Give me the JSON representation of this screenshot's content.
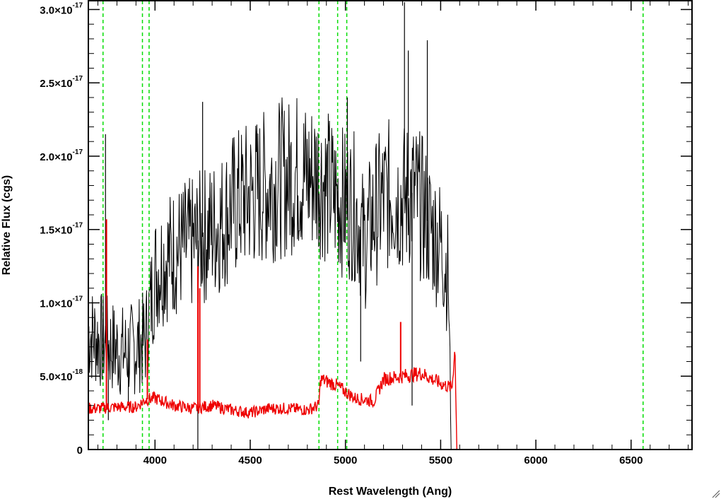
{
  "chart_data": {
    "type": "line",
    "xlabel": "Rest Wavelength (Ang)",
    "ylabel": "Relative Flux (cgs)",
    "xlim": [
      3650,
      6820
    ],
    "ylim": [
      0,
      3.06e-17
    ],
    "x_ticks": [
      {
        "value": 4000,
        "label": "4000"
      },
      {
        "value": 4500,
        "label": "4500"
      },
      {
        "value": 5000,
        "label": "5000"
      },
      {
        "value": 5500,
        "label": "5500"
      },
      {
        "value": 6000,
        "label": "6000"
      },
      {
        "value": 6500,
        "label": "6500"
      }
    ],
    "y_ticks": [
      {
        "value": 0,
        "mantissa": "0",
        "exponent": ""
      },
      {
        "value": 5e-18,
        "mantissa": "5.0×10",
        "exponent": "-18"
      },
      {
        "value": 1e-17,
        "mantissa": "1.0×10",
        "exponent": "-17"
      },
      {
        "value": 1.5e-17,
        "mantissa": "1.5×10",
        "exponent": "-17"
      },
      {
        "value": 2e-17,
        "mantissa": "2.0×10",
        "exponent": "-17"
      },
      {
        "value": 2.5e-17,
        "mantissa": "2.5×10",
        "exponent": "-17"
      },
      {
        "value": 3e-17,
        "mantissa": "3.0×10",
        "exponent": "-17"
      }
    ],
    "vertical_lines": {
      "color": "#00dd00",
      "style": "dashed",
      "x": [
        3727,
        3934,
        3969,
        4861,
        4959,
        5007,
        6563
      ]
    },
    "series": [
      {
        "color": "#000000",
        "points": [
          [
            3650,
            8e-18
          ],
          [
            3700,
            7.5e-18
          ],
          [
            3750,
            7.2e-18
          ],
          [
            3800,
            6.8e-18
          ],
          [
            3850,
            6.6e-18
          ],
          [
            3900,
            7e-18
          ],
          [
            3950,
            7.5e-18
          ],
          [
            4000,
            1.2e-17
          ],
          [
            4050,
            1.3e-17
          ],
          [
            4100,
            1.35e-17
          ],
          [
            4150,
            1.38e-17
          ],
          [
            4200,
            1.4e-17
          ],
          [
            4250,
            1.45e-17
          ],
          [
            4300,
            1.5e-17
          ],
          [
            4350,
            1.55e-17
          ],
          [
            4400,
            1.65e-17
          ],
          [
            4450,
            1.7e-17
          ],
          [
            4500,
            1.73e-17
          ],
          [
            4550,
            1.77e-17
          ],
          [
            4600,
            1.8e-17
          ],
          [
            4650,
            1.85e-17
          ],
          [
            4700,
            1.85e-17
          ],
          [
            4750,
            1.9e-17
          ],
          [
            4800,
            1.85e-17
          ],
          [
            4850,
            1.88e-17
          ],
          [
            4900,
            1.8e-17
          ],
          [
            4950,
            1.72e-17
          ],
          [
            5000,
            1.68e-17
          ],
          [
            5050,
            1.65e-17
          ],
          [
            5100,
            1.4e-17
          ],
          [
            5150,
            1.6e-17
          ],
          [
            5200,
            1.7e-17
          ],
          [
            5250,
            1.75e-17
          ],
          [
            5300,
            1.7e-17
          ],
          [
            5350,
            1.75e-17
          ],
          [
            5400,
            1.65e-17
          ],
          [
            5450,
            1.5e-17
          ],
          [
            5500,
            1.4e-17
          ],
          [
            5540,
            1.2e-17
          ],
          [
            5555,
            0.0
          ]
        ],
        "spikes": [
          [
            3740,
            2.15e-17
          ],
          [
            3755,
            2e-18
          ],
          [
            3860,
            3e-18
          ],
          [
            4225,
            0.0
          ],
          [
            4250,
            2.37e-17
          ],
          [
            5010,
            2.4e-17
          ],
          [
            5080,
            6e-18
          ],
          [
            5310,
            3.05e-17
          ],
          [
            5330,
            2.72e-17
          ],
          [
            5350,
            3e-18
          ],
          [
            5430,
            2.79e-17
          ]
        ]
      },
      {
        "color": "#ee0000",
        "points": [
          [
            3650,
            2.8e-18
          ],
          [
            3700,
            2.8e-18
          ],
          [
            3800,
            2.9e-18
          ],
          [
            3900,
            2.9e-18
          ],
          [
            3950,
            3.4e-18
          ],
          [
            4000,
            3.5e-18
          ],
          [
            4100,
            3e-18
          ],
          [
            4200,
            2.8e-18
          ],
          [
            4300,
            3e-18
          ],
          [
            4400,
            2.7e-18
          ],
          [
            4500,
            2.5e-18
          ],
          [
            4600,
            2.8e-18
          ],
          [
            4700,
            2.8e-18
          ],
          [
            4800,
            2.7e-18
          ],
          [
            4860,
            3e-18
          ],
          [
            4870,
            4.8e-18
          ],
          [
            4950,
            4.4e-18
          ],
          [
            5050,
            3.5e-18
          ],
          [
            5150,
            3.3e-18
          ],
          [
            5200,
            4.8e-18
          ],
          [
            5300,
            5e-18
          ],
          [
            5400,
            5.2e-18
          ],
          [
            5500,
            4.5e-18
          ],
          [
            5560,
            4.2e-18
          ],
          [
            5575,
            7e-18
          ],
          [
            5585,
            0.0
          ],
          [
            6820,
            0.0
          ]
        ],
        "spikes": [
          [
            3745,
            1.57e-17
          ],
          [
            3960,
            7.5e-18
          ],
          [
            4225,
            1.25e-17
          ],
          [
            4235,
            1.1e-17
          ],
          [
            5290,
            8.7e-18
          ]
        ]
      }
    ]
  }
}
